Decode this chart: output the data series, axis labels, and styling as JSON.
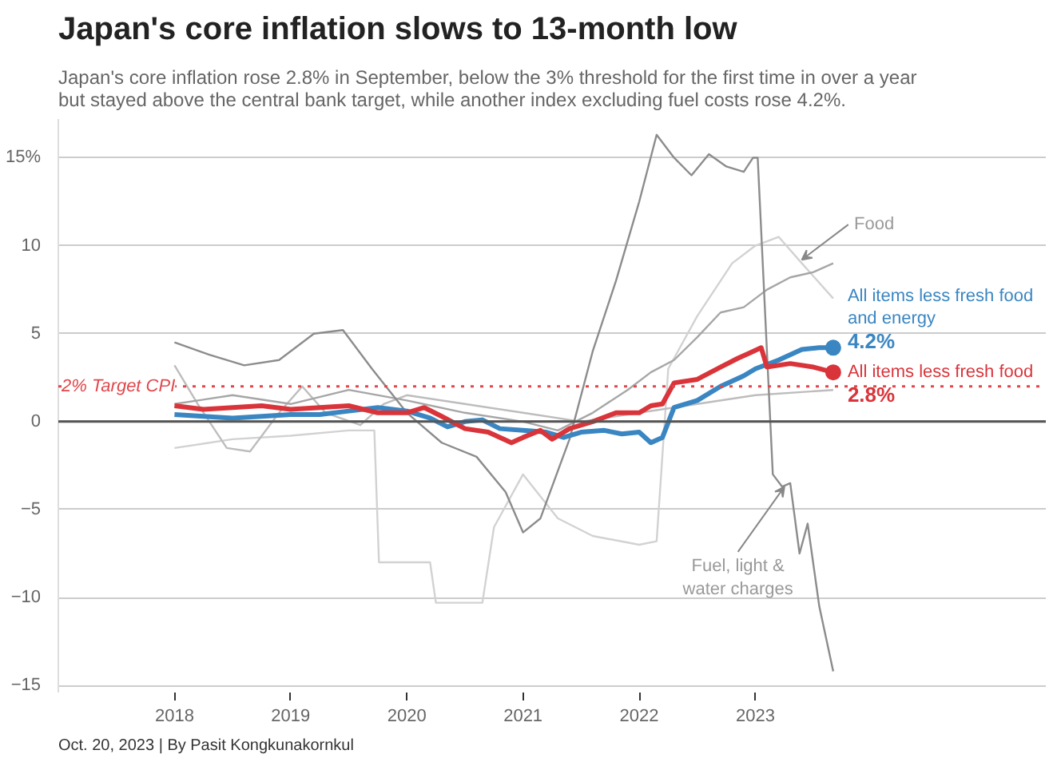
{
  "chart_data": {
    "type": "line",
    "title": "Japan's core inflation slows to 13-month low",
    "subtitle": "Japan's core inflation rose 2.8% in September, below the 3% threshold for the first time in over a year but stayed above the central bank target, while another index excluding fuel costs rose 4.2%.",
    "xlim": [
      2017.0,
      2025.5
    ],
    "xticks": [
      2018,
      2019,
      2020,
      2021,
      2022,
      2023
    ],
    "ylim": [
      -15.4,
      17.2
    ],
    "yticks": [
      {
        "value": 15,
        "label": "15%"
      },
      10,
      5,
      0,
      {
        "value": -5,
        "label": "−5"
      },
      {
        "value": -10,
        "label": "−10"
      },
      {
        "value": -15,
        "label": "−15"
      }
    ],
    "grid": "y",
    "line_style": "solid",
    "ref_lines": [
      {
        "axis": "y",
        "value": 2,
        "label": "2% Target CPI",
        "color": "#e0474c",
        "line_style": "dotted"
      }
    ],
    "series": [
      {
        "color": "#d2d2d2",
        "x": [
          2018.0,
          2018.5,
          2019.0,
          2019.5,
          2019.72,
          2019.76,
          2020.2,
          2020.25,
          2020.65,
          2020.75,
          2021.0,
          2021.3,
          2021.6,
          2022.0,
          2022.15,
          2022.25,
          2022.5,
          2022.8,
          2023.0,
          2023.2,
          2023.4,
          2023.67
        ],
        "values": [
          -1.5,
          -1.0,
          -0.8,
          -0.5,
          -0.5,
          -8.0,
          -8.0,
          -10.3,
          -10.3,
          -6.0,
          -3.0,
          -5.5,
          -6.5,
          -7.0,
          -6.8,
          3.0,
          6.0,
          9.0,
          10.0,
          10.5,
          9.0,
          7.0
        ]
      },
      {
        "color": "#bdbdbd",
        "x": [
          2018.0,
          2018.2,
          2018.45,
          2018.65,
          2018.9,
          2019.1,
          2019.3,
          2019.6,
          2019.8,
          2020.0,
          2020.5,
          2021.0,
          2021.5,
          2022.0,
          2022.5,
          2023.0,
          2023.67
        ],
        "values": [
          3.2,
          1.0,
          -1.5,
          -1.7,
          0.5,
          2.0,
          0.5,
          -0.2,
          1.0,
          1.5,
          1.0,
          0.5,
          0.0,
          0.5,
          1.0,
          1.5,
          1.8
        ]
      },
      {
        "color": "#a6a6a6",
        "x": [
          2018.0,
          2018.5,
          2019.0,
          2019.5,
          2020.0,
          2020.5,
          2021.0,
          2021.3,
          2021.6,
          2021.9,
          2022.1,
          2022.3,
          2022.5,
          2022.7,
          2022.9,
          2023.1,
          2023.3,
          2023.5,
          2023.67
        ],
        "values": [
          1.0,
          1.5,
          1.0,
          1.8,
          1.2,
          0.5,
          0.0,
          -0.5,
          0.5,
          1.8,
          2.8,
          3.5,
          4.8,
          6.2,
          6.5,
          7.5,
          8.2,
          8.5,
          9.0
        ]
      },
      {
        "color": "#8c8c8c",
        "x": [
          2018.0,
          2018.3,
          2018.6,
          2018.9,
          2019.2,
          2019.45,
          2019.7,
          2020.0,
          2020.3,
          2020.6,
          2020.85,
          2021.0,
          2021.15,
          2021.4,
          2021.6,
          2021.8,
          2022.0,
          2022.15,
          2022.3,
          2022.45,
          2022.6,
          2022.75,
          2022.9,
          2022.98,
          2023.02,
          2023.15,
          2023.23,
          2023.3,
          2023.38,
          2023.45,
          2023.55,
          2023.67
        ],
        "values": [
          4.5,
          3.8,
          3.2,
          3.5,
          5.0,
          5.2,
          3.0,
          0.5,
          -1.2,
          -2.0,
          -4.0,
          -6.3,
          -5.5,
          -1.0,
          4.0,
          8.0,
          12.5,
          16.3,
          15.0,
          14.0,
          15.2,
          14.5,
          14.2,
          15.0,
          15.0,
          -3.0,
          -3.7,
          -3.5,
          -7.5,
          -5.8,
          -10.5,
          -14.2
        ]
      },
      {
        "name": "All items less fresh food and energy",
        "color": "#3a86c2",
        "x": [
          2018.0,
          2018.25,
          2018.5,
          2018.75,
          2019.0,
          2019.25,
          2019.5,
          2019.75,
          2020.0,
          2020.2,
          2020.35,
          2020.5,
          2020.65,
          2020.8,
          2021.0,
          2021.2,
          2021.35,
          2021.5,
          2021.7,
          2021.85,
          2022.0,
          2022.1,
          2022.2,
          2022.3,
          2022.5,
          2022.7,
          2022.9,
          2023.0,
          2023.2,
          2023.4,
          2023.55,
          2023.67
        ],
        "values": [
          0.4,
          0.3,
          0.2,
          0.3,
          0.4,
          0.4,
          0.6,
          0.8,
          0.6,
          0.2,
          -0.3,
          0.0,
          0.1,
          -0.4,
          -0.5,
          -0.6,
          -0.9,
          -0.6,
          -0.5,
          -0.7,
          -0.6,
          -1.2,
          -0.9,
          0.8,
          1.2,
          2.0,
          2.6,
          3.0,
          3.5,
          4.1,
          4.2,
          4.2
        ],
        "value_labels": [
          null,
          null,
          null,
          null,
          null,
          null,
          null,
          null,
          null,
          null,
          null,
          null,
          null,
          null,
          null,
          null,
          null,
          null,
          null,
          null,
          null,
          null,
          null,
          null,
          null,
          null,
          null,
          null,
          null,
          null,
          null,
          "4.2%"
        ]
      },
      {
        "name": "All items less fresh food",
        "color": "#d9343a",
        "x": [
          2018.0,
          2018.25,
          2018.5,
          2018.75,
          2019.0,
          2019.25,
          2019.5,
          2019.75,
          2020.0,
          2020.15,
          2020.3,
          2020.5,
          2020.7,
          2020.9,
          2021.0,
          2021.15,
          2021.25,
          2021.4,
          2021.6,
          2021.8,
          2022.0,
          2022.1,
          2022.2,
          2022.3,
          2022.5,
          2022.7,
          2022.85,
          2022.95,
          2023.05,
          2023.1,
          2023.3,
          2023.5,
          2023.67
        ],
        "values": [
          0.9,
          0.7,
          0.8,
          0.9,
          0.7,
          0.8,
          0.9,
          0.5,
          0.5,
          0.8,
          0.3,
          -0.4,
          -0.6,
          -1.2,
          -0.9,
          -0.5,
          -1.0,
          -0.4,
          0.0,
          0.5,
          0.5,
          0.9,
          1.0,
          2.2,
          2.4,
          3.1,
          3.6,
          3.9,
          4.2,
          3.1,
          3.3,
          3.1,
          2.8
        ],
        "value_labels": [
          null,
          null,
          null,
          null,
          null,
          null,
          null,
          null,
          null,
          null,
          null,
          null,
          null,
          null,
          null,
          null,
          null,
          null,
          null,
          null,
          null,
          null,
          null,
          null,
          null,
          null,
          null,
          null,
          null,
          null,
          null,
          null,
          "2.8%"
        ]
      }
    ],
    "annotations": [
      "Oct. 20, 2023 | By Pasit Kongkunakornkul",
      {
        "text": "Food",
        "x": 2023.4,
        "y": 9.2
      },
      {
        "text": "Fuel, light & water charges",
        "x": 2023.25,
        "y": -3.7
      }
    ]
  }
}
